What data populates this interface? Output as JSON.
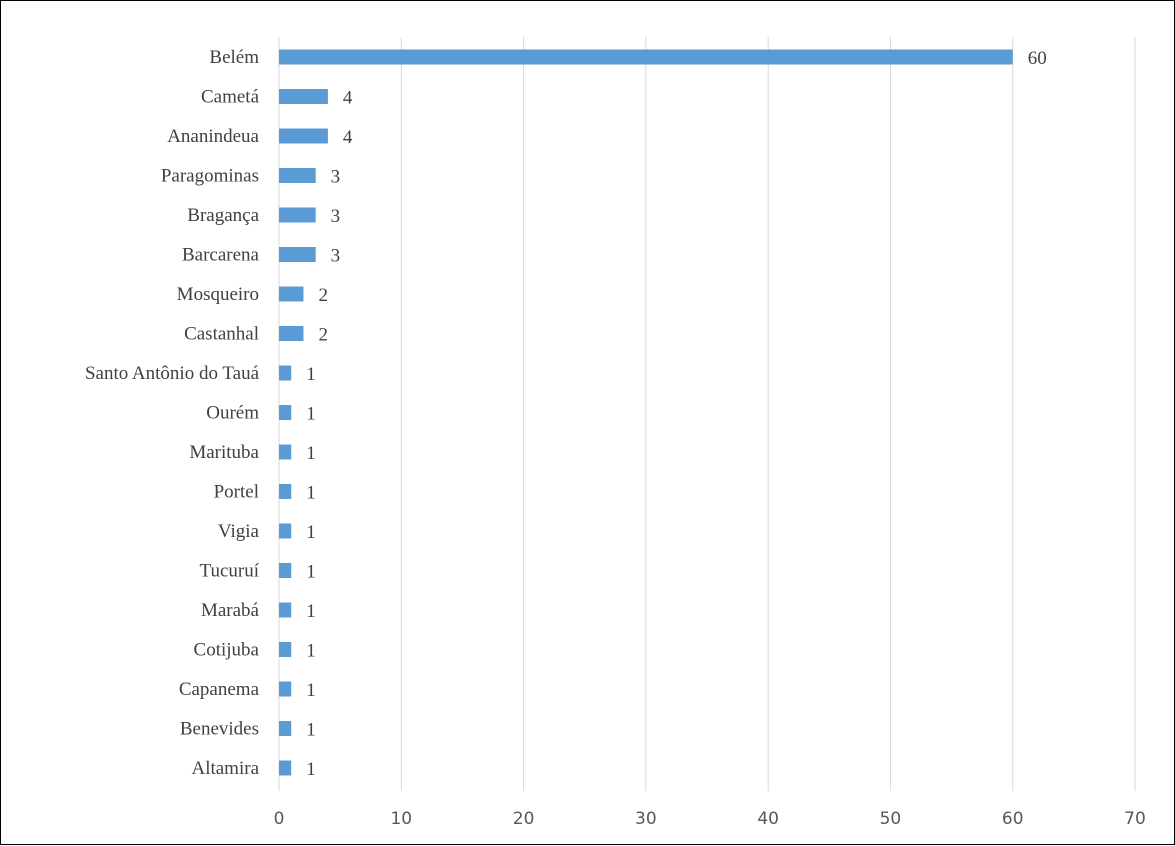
{
  "chart_data": {
    "type": "bar",
    "orientation": "horizontal",
    "title": "",
    "xlabel": "",
    "ylabel": "",
    "categories": [
      "Belém",
      "Cametá",
      "Ananindeua",
      "Paragominas",
      "Bragança",
      "Barcarena",
      "Mosqueiro",
      "Castanhal",
      "Santo Antônio do Tauá",
      "Ourém",
      "Marituba",
      "Portel",
      "Vigia",
      "Tucuruí",
      "Marabá",
      "Cotijuba",
      "Capanema",
      "Benevides",
      "Altamira"
    ],
    "values": [
      60,
      4,
      4,
      3,
      3,
      3,
      2,
      2,
      1,
      1,
      1,
      1,
      1,
      1,
      1,
      1,
      1,
      1,
      1
    ],
    "data_labels": [
      "60",
      "4",
      "4",
      "3",
      "3",
      "3",
      "2",
      "2",
      "1",
      "1",
      "1",
      "1",
      "1",
      "1",
      "1",
      "1",
      "1",
      "1",
      "1"
    ],
    "x_ticks": [
      "0",
      "10",
      "20",
      "30",
      "40",
      "50",
      "60",
      "70"
    ],
    "xlim": [
      0,
      70
    ],
    "grid": "vertical major gridlines",
    "legend": "none",
    "colors": {
      "bar": "#5b9bd5",
      "grid": "#d9d9d9",
      "category_text": "#404040",
      "tick_text": "#595959",
      "frame": "#000000"
    }
  }
}
